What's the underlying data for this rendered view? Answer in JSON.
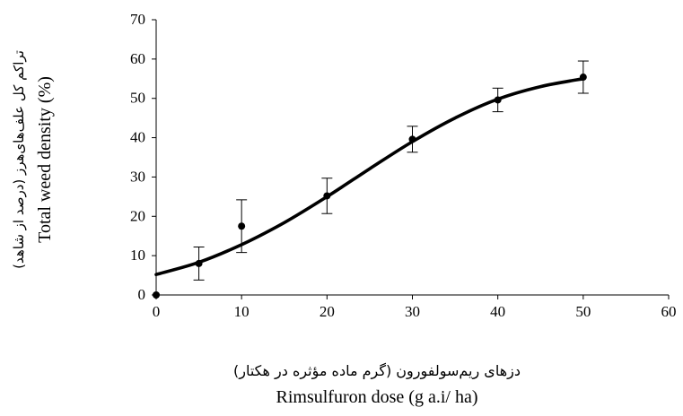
{
  "chart_data": {
    "type": "scatter",
    "title": "",
    "xlabel": "Rimsulfuron dose (g a.i/ ha)",
    "xlabel_fa": "دزهای ریم‌سولفورون (گرم ماده مؤثره در هکتار)",
    "ylabel": "Total weed density (%)",
    "ylabel_fa": "تراکم کل علف‌های‌هرز (درصد از شاهد)",
    "xlim": [
      0,
      60
    ],
    "ylim": [
      0,
      70
    ],
    "xticks": [
      0,
      10,
      20,
      30,
      40,
      50,
      60
    ],
    "yticks": [
      0,
      10,
      20,
      30,
      40,
      50,
      60,
      70
    ],
    "grid": false,
    "legend": "none",
    "points": [
      {
        "x": 0,
        "y": 0,
        "err": 0
      },
      {
        "x": 5,
        "y": 8,
        "err": 4.2
      },
      {
        "x": 10,
        "y": 17.5,
        "err": 6.7
      },
      {
        "x": 20,
        "y": 25.2,
        "err": 4.5
      },
      {
        "x": 30,
        "y": 39.6,
        "err": 3.3
      },
      {
        "x": 40,
        "y": 49.6,
        "err": 3.0
      },
      {
        "x": 50,
        "y": 55.4,
        "err": 4.1
      }
    ],
    "fit_curve": {
      "type": "sigmoid",
      "x": [
        0,
        5,
        10,
        15,
        20,
        25,
        30,
        35,
        40,
        45,
        50
      ],
      "y": [
        5.2,
        8.3,
        12.8,
        18.4,
        25.0,
        32.1,
        39.0,
        45.0,
        49.8,
        53.0,
        55.0
      ]
    }
  }
}
